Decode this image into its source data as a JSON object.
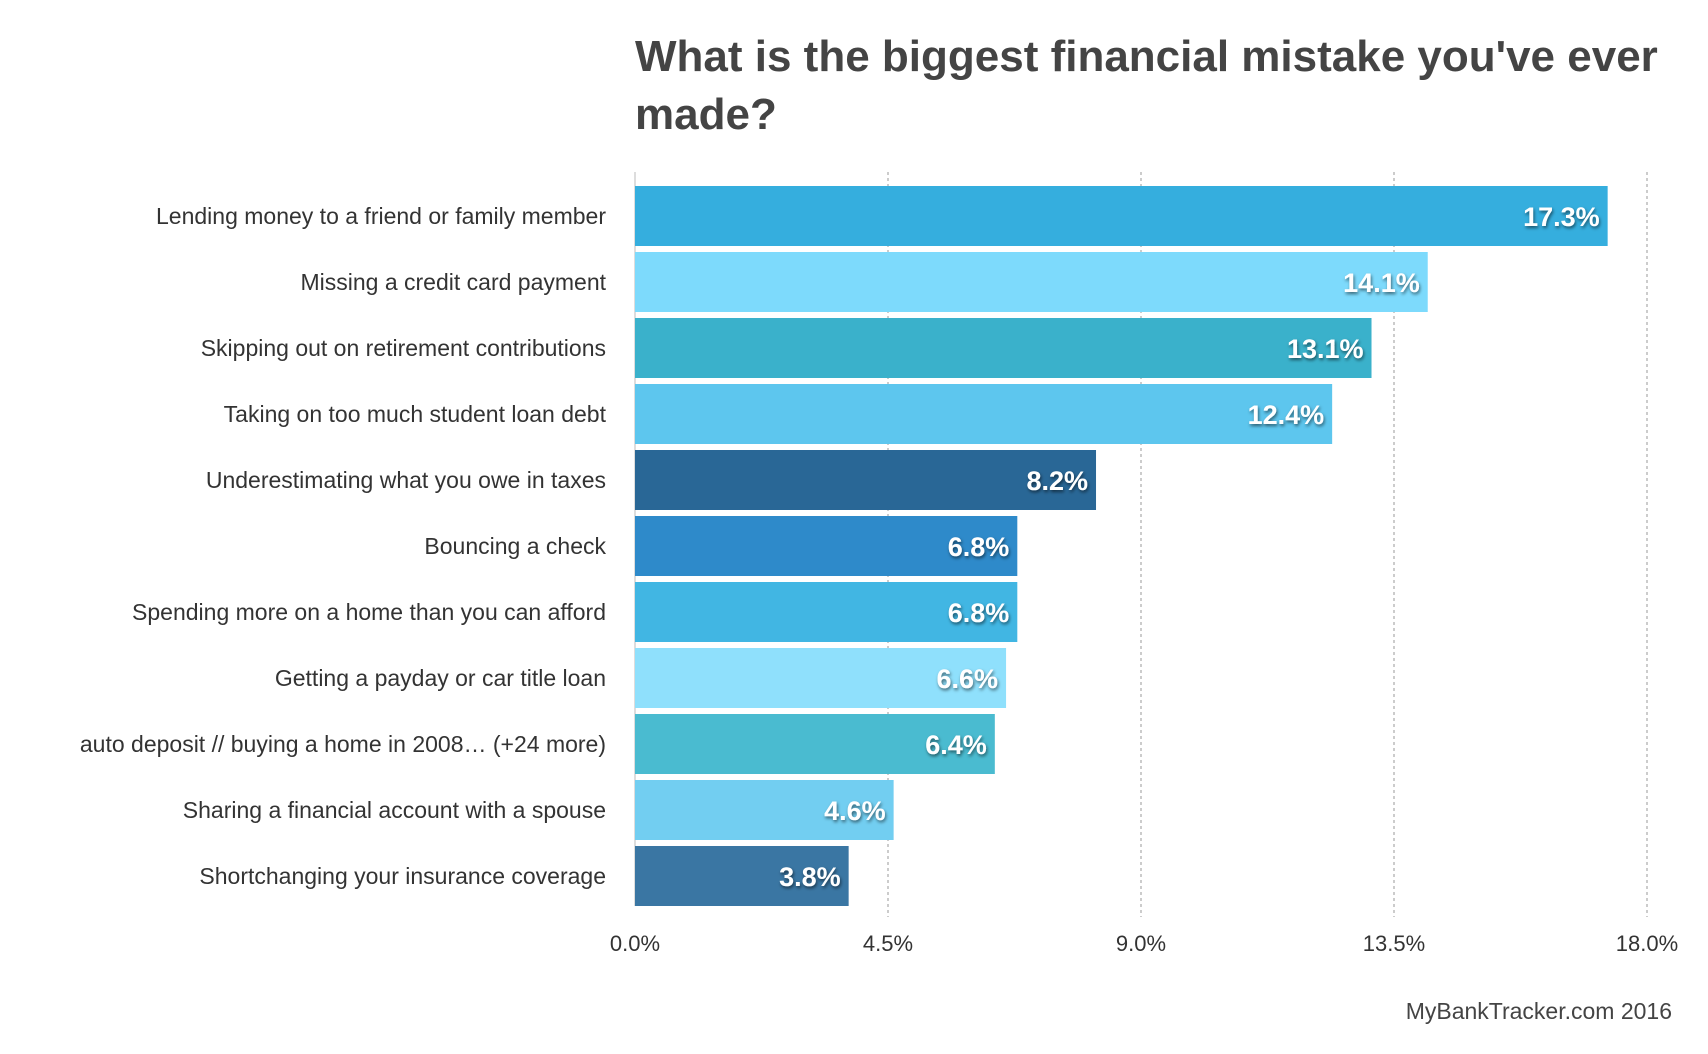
{
  "chart_data": {
    "type": "bar",
    "orientation": "horizontal",
    "title": "What is the biggest financial mistake you've ever made?",
    "categories": [
      "Lending money to a friend or family member",
      "Missing a credit card payment",
      "Skipping out on retirement contributions",
      "Taking on too much student loan debt",
      "Underestimating what you owe in taxes",
      "Bouncing a check",
      "Spending more on a home than you can afford",
      "Getting a payday or car title loan",
      "auto deposit // buying a home in 2008… (+24 more)",
      "Sharing a financial account with a spouse",
      "Shortchanging your insurance coverage"
    ],
    "values": [
      17.3,
      14.1,
      13.1,
      12.4,
      8.2,
      6.8,
      6.8,
      6.6,
      6.4,
      4.6,
      3.8
    ],
    "value_labels": [
      "17.3%",
      "14.1%",
      "13.1%",
      "12.4%",
      "8.2%",
      "6.8%",
      "6.8%",
      "6.6%",
      "6.4%",
      "4.6%",
      "3.8%"
    ],
    "colors": [
      "#35AEDE",
      "#7DDAFC",
      "#3AB1CB",
      "#5DC6EE",
      "#296796",
      "#2E8ACA",
      "#41B6E3",
      "#8FE0FC",
      "#4ABBD0",
      "#72CEF1",
      "#3A76A3"
    ],
    "xlim": [
      0,
      18
    ],
    "xticks": [
      0,
      4.5,
      9,
      13.5,
      18
    ],
    "xtick_labels": [
      "0.0%",
      "4.5%",
      "9.0%",
      "13.5%",
      "18.0%"
    ],
    "grid": true,
    "xlabel": "",
    "ylabel": ""
  },
  "credit": "MyBankTracker.com 2016"
}
